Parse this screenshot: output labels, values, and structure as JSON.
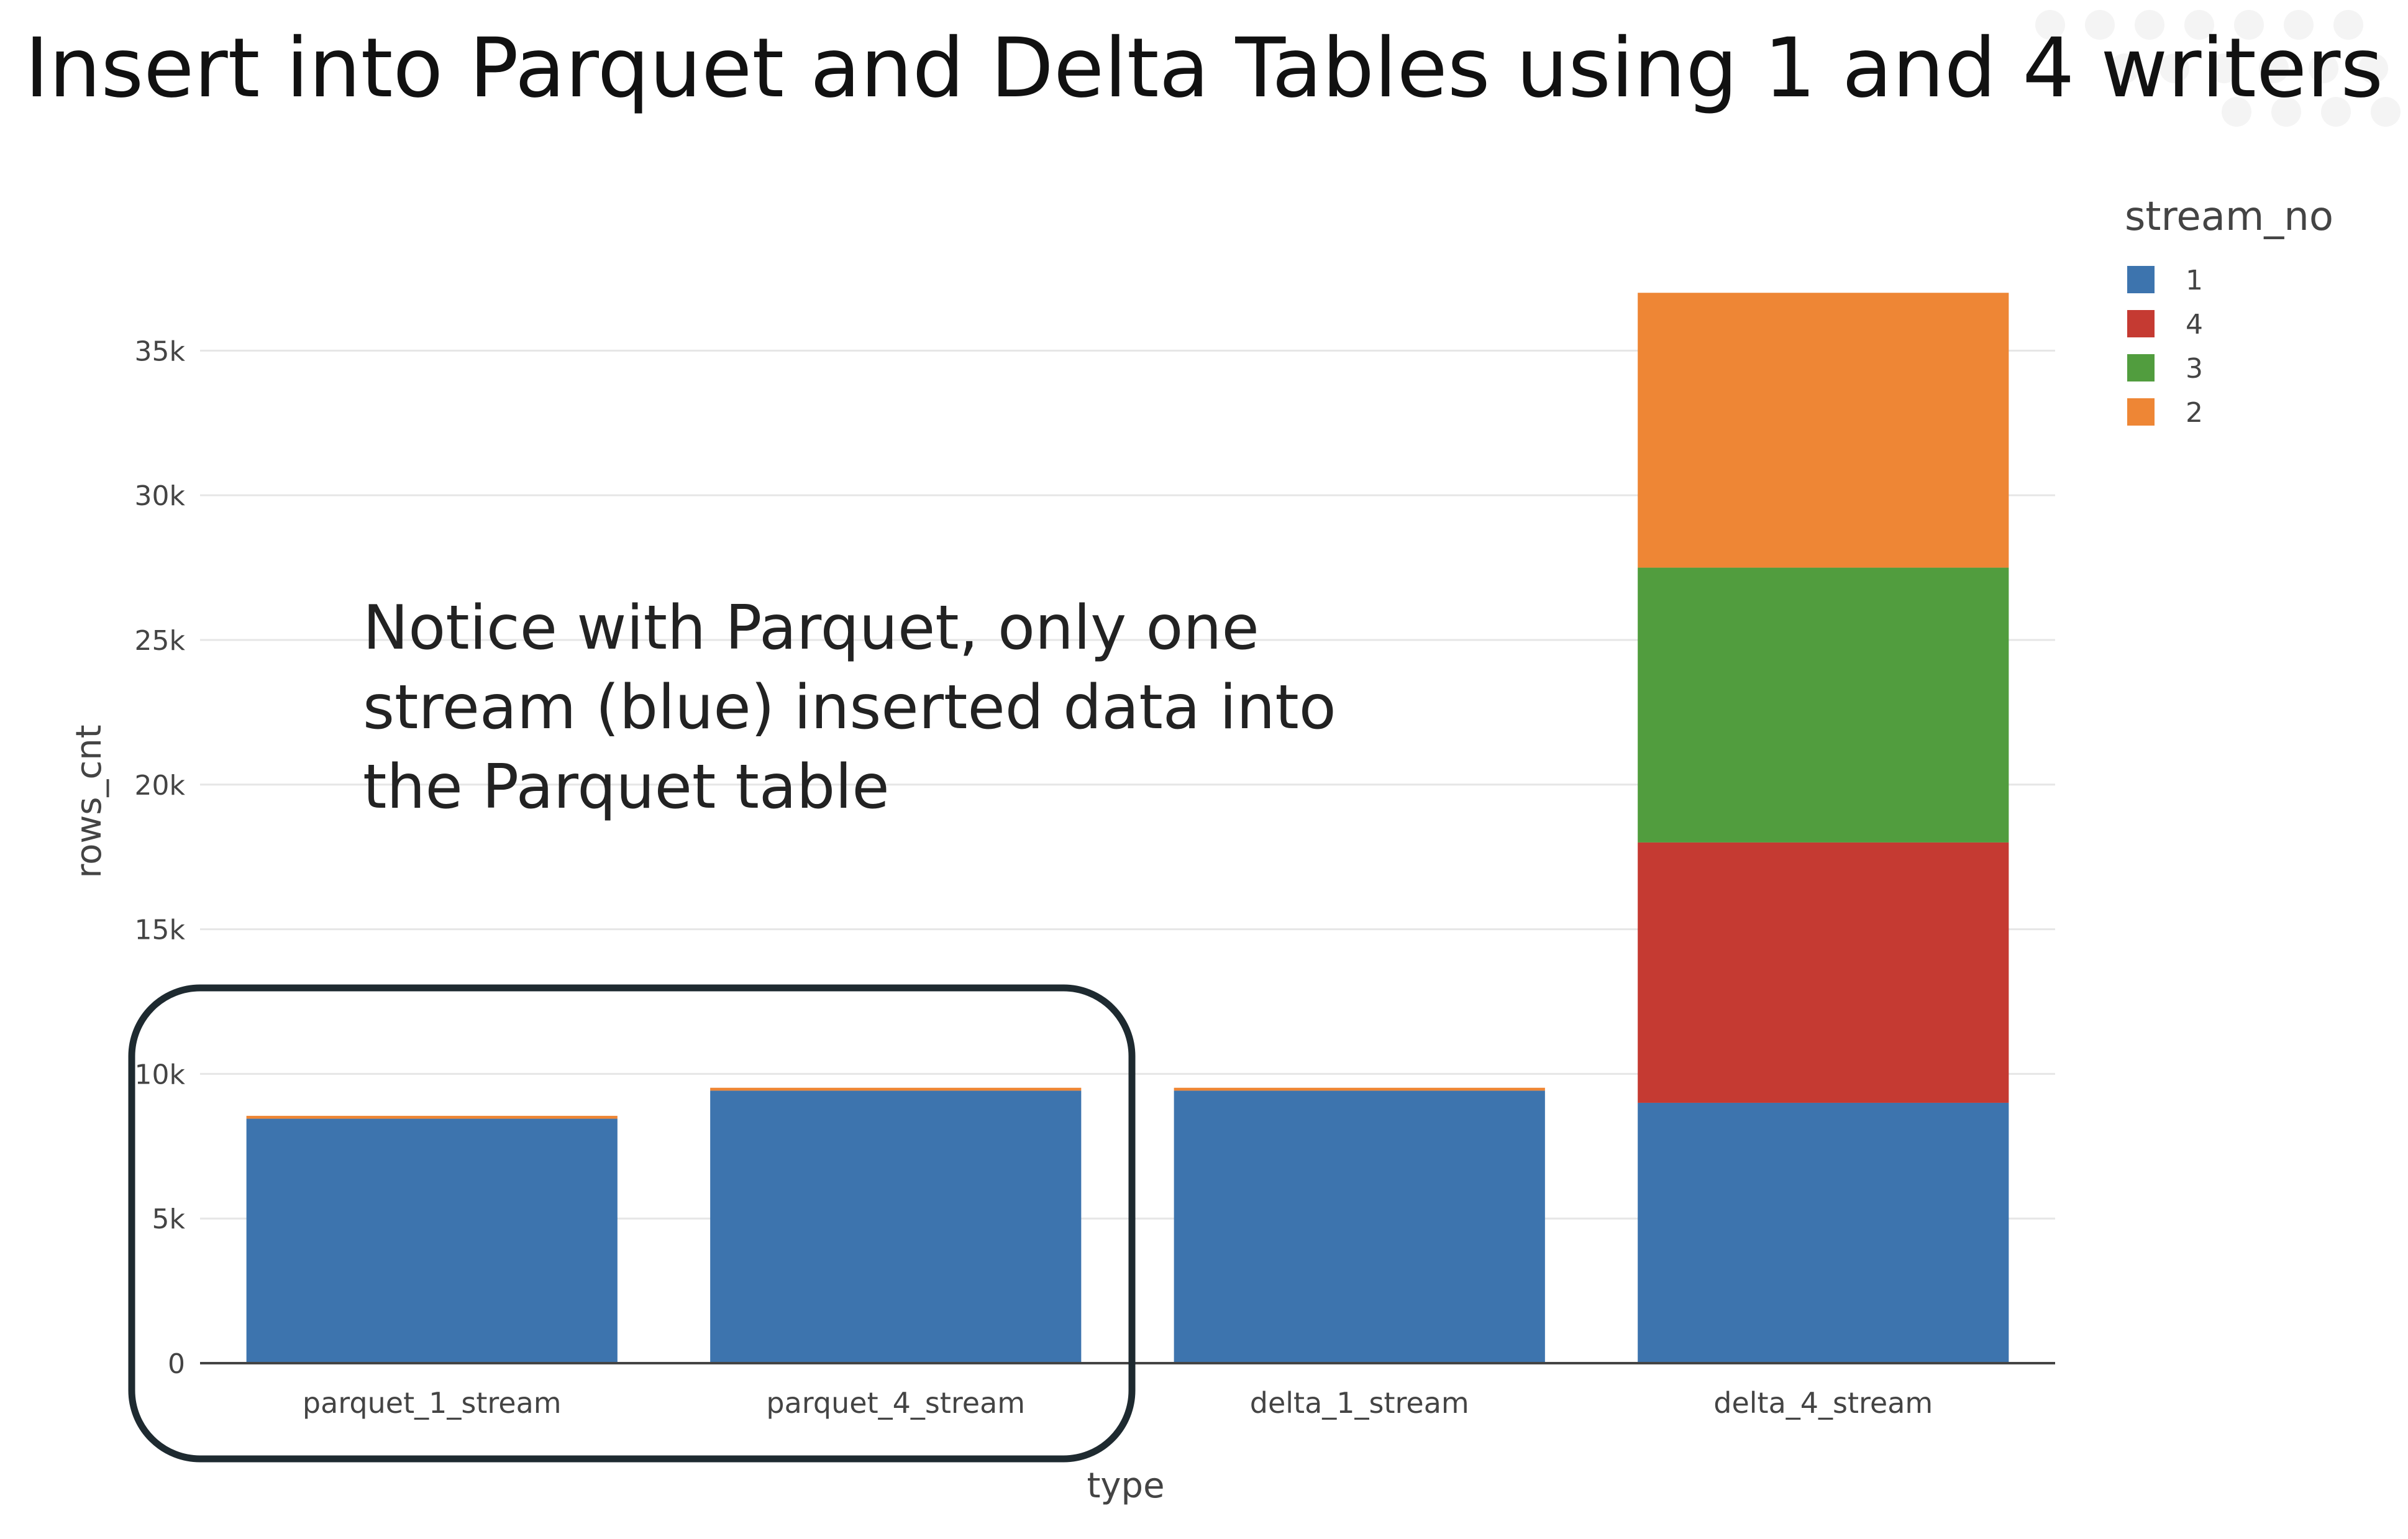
{
  "chart_data": {
    "type": "bar",
    "barmode": "stack",
    "title": "Insert into Parquet and Delta Tables using 1 and 4 writers",
    "xlabel": "type",
    "ylabel": "rows_cnt",
    "ylim": [
      0,
      37800
    ],
    "yticks": [
      {
        "value": 0,
        "label": "0"
      },
      {
        "value": 5000,
        "label": "5k"
      },
      {
        "value": 10000,
        "label": "10k"
      },
      {
        "value": 15000,
        "label": "15k"
      },
      {
        "value": 20000,
        "label": "20k"
      },
      {
        "value": 25000,
        "label": "25k"
      },
      {
        "value": 30000,
        "label": "30k"
      },
      {
        "value": 35000,
        "label": "35k"
      }
    ],
    "grid": true,
    "categories": [
      "parquet_1_stream",
      "parquet_4_stream",
      "delta_1_stream",
      "delta_4_stream"
    ],
    "series": [
      {
        "name": "1",
        "color": "#3d74ae",
        "values": [
          8450,
          9420,
          9420,
          9000
        ]
      },
      {
        "name": "4",
        "color": "#c53a32",
        "values": [
          0,
          0,
          0,
          9000
        ]
      },
      {
        "name": "3",
        "color": "#519d3e",
        "values": [
          0,
          0,
          0,
          9500
        ]
      },
      {
        "name": "2",
        "color": "#ee8635",
        "values": [
          100,
          100,
          100,
          9500
        ]
      }
    ],
    "legend": {
      "title": "stream_no",
      "placement": "right"
    },
    "annotation": {
      "lines": [
        "Notice with Parquet, only one",
        "stream (blue) inserted data into",
        "the Parquet table"
      ],
      "highlight": "rounded box around parquet_1_stream and parquet_4_stream"
    }
  }
}
